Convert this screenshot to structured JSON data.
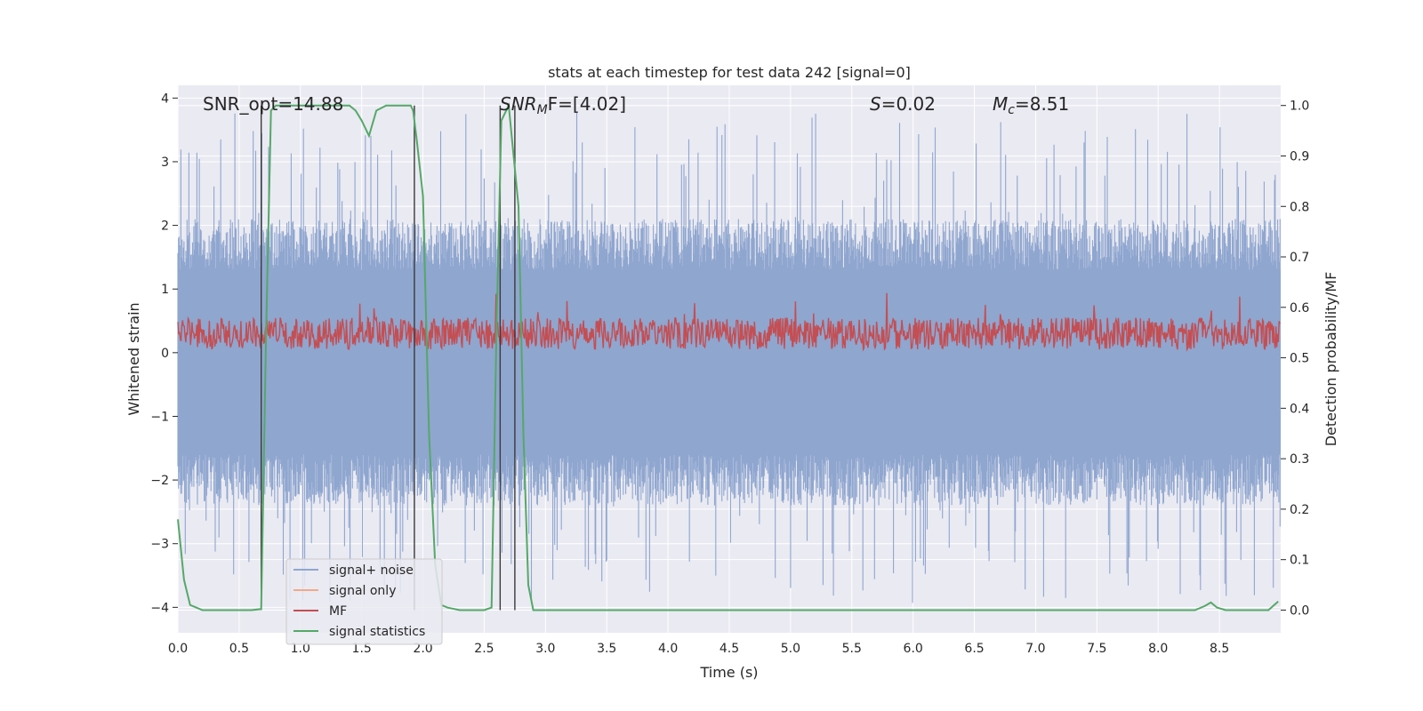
{
  "chart_data": {
    "type": "line",
    "title": "stats at each timestep for test data 242 [signal=0]",
    "xlabel": "Time (s)",
    "ylabel_left": "Whitened strain",
    "ylabel_right": "Detection probability/MF",
    "xlim": [
      0,
      9
    ],
    "ylim_left": [
      -4.4,
      4.2
    ],
    "ylim_right": [
      -0.045,
      1.04
    ],
    "x_ticks": [
      "0.0",
      "0.5",
      "1.0",
      "1.5",
      "2.0",
      "2.5",
      "3.0",
      "3.5",
      "4.0",
      "4.5",
      "5.0",
      "5.5",
      "6.0",
      "6.5",
      "7.0",
      "7.5",
      "8.0",
      "8.5"
    ],
    "x_tick_values": [
      0,
      0.5,
      1,
      1.5,
      2,
      2.5,
      3,
      3.5,
      4,
      4.5,
      5,
      5.5,
      6,
      6.5,
      7,
      7.5,
      8,
      8.5
    ],
    "y_ticks_left": [
      "4",
      "3",
      "2",
      "1",
      "0",
      "−1",
      "−2",
      "−3",
      "−4"
    ],
    "y_tick_values_left": [
      4,
      3,
      2,
      1,
      0,
      -1,
      -2,
      -3,
      -4
    ],
    "y_ticks_right": [
      "1.0",
      "0.9",
      "0.8",
      "0.7",
      "0.6",
      "0.5",
      "0.4",
      "0.3",
      "0.2",
      "0.1",
      "0.0"
    ],
    "y_tick_values_right": [
      1.0,
      0.9,
      0.8,
      0.7,
      0.6,
      0.5,
      0.4,
      0.3,
      0.2,
      0.1,
      0.0
    ],
    "annotations": {
      "snr_opt": "SNR_opt=14.88",
      "snr_mf_base": "SNR",
      "snr_mf_sub": "M",
      "snr_mf_rest": "F=[4.02]",
      "s_var": "S",
      "s_rest": "=0.02",
      "mc_base": "M",
      "mc_sub": "c",
      "mc_rest": "=8.51"
    },
    "noise_band": {
      "typical_upper": 1.3,
      "typical_lower": -1.6,
      "max_upper": 3.8,
      "min_lower": -3.95
    },
    "mf_band": {
      "center": 0.3,
      "low": 0.05,
      "high": 0.95
    },
    "vertical_markers": [
      0.68,
      1.93,
      2.63,
      2.75
    ],
    "signal_statistics": {
      "x": [
        0,
        0.05,
        0.1,
        0.15,
        0.2,
        0.3,
        0.4,
        0.5,
        0.6,
        0.68,
        0.72,
        0.76,
        0.8,
        1.0,
        1.2,
        1.4,
        1.45,
        1.5,
        1.56,
        1.62,
        1.7,
        1.8,
        1.9,
        1.92,
        1.95,
        2.0,
        2.05,
        2.1,
        2.15,
        2.2,
        2.3,
        2.4,
        2.5,
        2.56,
        2.6,
        2.64,
        2.7,
        2.74,
        2.78,
        2.82,
        2.86,
        2.9,
        3.0,
        4.0,
        5.0,
        6.0,
        7.0,
        8.0,
        8.3,
        8.38,
        8.43,
        8.48,
        8.55,
        8.7,
        8.9,
        8.98
      ],
      "y": [
        0.18,
        0.06,
        0.01,
        0.005,
        0.0,
        0.0,
        0.0,
        0.0,
        0.0,
        0.002,
        0.55,
        0.99,
        1.0,
        1.0,
        1.0,
        1.0,
        0.99,
        0.97,
        0.94,
        0.99,
        1.0,
        1.0,
        1.0,
        0.99,
        0.93,
        0.82,
        0.35,
        0.09,
        0.01,
        0.005,
        0.0,
        0.0,
        0.0,
        0.005,
        0.55,
        0.97,
        1.0,
        0.9,
        0.8,
        0.35,
        0.05,
        0.0,
        0.0,
        0.0,
        0.0,
        0.0,
        0.0,
        0.0,
        0.0,
        0.008,
        0.015,
        0.005,
        0.0,
        0.0,
        0.0,
        0.017
      ]
    },
    "legend": {
      "position": "lower-left",
      "entries": [
        {
          "label": "signal+ noise",
          "color": "#8fa6cf"
        },
        {
          "label": "signal only",
          "color": "#f2a98a"
        },
        {
          "label": "MF",
          "color": "#c44e52"
        },
        {
          "label": "signal statistics",
          "color": "#55a868"
        }
      ]
    },
    "colors": {
      "plot_bg": "#eaeaf2",
      "grid": "#ffffff",
      "noise": "#8fa6cf",
      "mf": "#c44e52",
      "stat": "#55a868",
      "marker": "#3a3a3a"
    },
    "grid": true
  }
}
